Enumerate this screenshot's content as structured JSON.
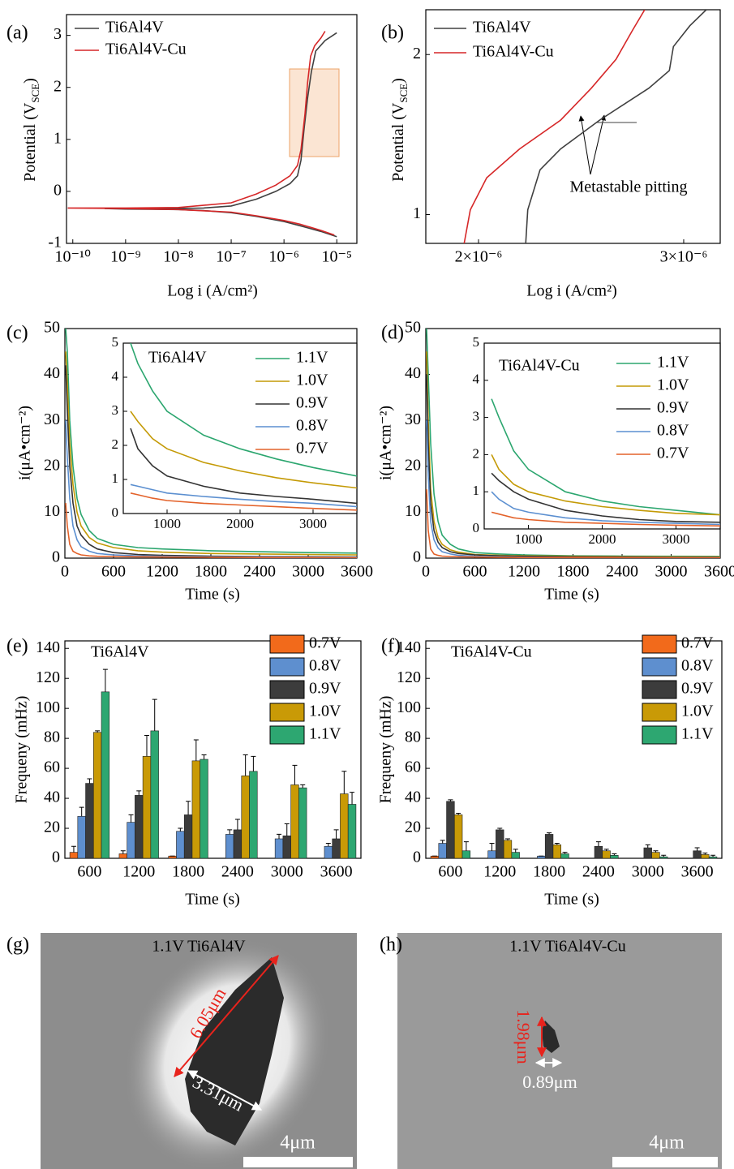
{
  "chart_data": [
    {
      "type": "line",
      "panel_label": "(a)",
      "xscale": "log",
      "xlabel": "Log i (A/cm²)",
      "ylabel": [
        "Potential (V",
        "SCE",
        ")"
      ],
      "xlim": [
        7.6e-11,
        2.4e-05
      ],
      "ylim": [
        -1,
        3.4
      ],
      "xticks": [
        {
          "value": 1e-10,
          "label": "10⁻¹⁰"
        },
        {
          "value": 1e-09,
          "label": "10⁻⁹"
        },
        {
          "value": 1e-08,
          "label": "10⁻⁸"
        },
        {
          "value": 1e-07,
          "label": "10⁻⁷"
        },
        {
          "value": 1e-06,
          "label": "10⁻⁶"
        },
        {
          "value": 1e-05,
          "label": "10⁻⁵"
        }
      ],
      "yticks": [
        -1,
        0,
        1,
        2,
        3
      ],
      "series": [
        {
          "name": "Ti6Al4V",
          "color": "#404040",
          "x": [
            1e-05,
            5e-06,
            2e-06,
            1e-06,
            3e-07,
            1e-07,
            3e-08,
            1e-08,
            1e-09,
            4e-10,
            1e-09,
            1e-08,
            3e-08,
            1e-07,
            3e-07,
            7e-07,
            1.3e-06,
            1.8e-06,
            2.1e-06,
            2.4e-06,
            2.8e-06,
            3.3e-06,
            4e-06,
            6e-06,
            1e-05
          ],
          "values": [
            -0.87,
            -0.77,
            -0.66,
            -0.58,
            -0.48,
            -0.41,
            -0.37,
            -0.35,
            -0.34,
            -0.33,
            -0.33,
            -0.33,
            -0.32,
            -0.28,
            -0.15,
            0.0,
            0.15,
            0.3,
            0.6,
            1.2,
            1.8,
            2.3,
            2.7,
            2.9,
            3.05
          ]
        },
        {
          "name": "Ti6Al4V-Cu",
          "color": "#d62728",
          "x": [
            9e-06,
            5e-06,
            2e-06,
            1e-06,
            3e-07,
            1e-07,
            1e-08,
            1e-09,
            8e-11,
            1e-09,
            1e-08,
            1e-07,
            3e-07,
            7e-07,
            1.3e-06,
            1.8e-06,
            2.1e-06,
            2.5e-06,
            2.8e-06,
            3.2e-06,
            3.8e-06,
            5e-06,
            6e-06
          ],
          "values": [
            -0.84,
            -0.75,
            -0.63,
            -0.56,
            -0.47,
            -0.4,
            -0.35,
            -0.33,
            -0.32,
            -0.32,
            -0.31,
            -0.22,
            -0.05,
            0.12,
            0.3,
            0.5,
            0.8,
            1.5,
            2.1,
            2.6,
            2.8,
            2.95,
            3.08
          ]
        }
      ]
    },
    {
      "type": "line",
      "panel_label": "(b)",
      "xlabel": "Log i (A/cm²)",
      "ylabel": [
        "Potential (V",
        "SCE",
        ")"
      ],
      "annotation": "Metastable pitting",
      "xlim": [
        1.743e-06,
        3.178e-06
      ],
      "ylim": [
        0.82,
        2.28
      ],
      "xticks": [
        {
          "value": 2e-06,
          "label": "2×10⁻⁶"
        },
        {
          "value": 3e-06,
          "label": "3×10⁻⁶"
        }
      ],
      "yticks": [
        1,
        2
      ],
      "series": [
        {
          "name": "Ti6Al4V",
          "color": "#404040",
          "x": [
            2.23e-06,
            2.24e-06,
            2.3e-06,
            2.4e-06,
            2.59e-06,
            2.71e-06,
            2.83e-06,
            2.93e-06,
            2.95e-06,
            3.03e-06,
            3.11e-06
          ],
          "values": [
            0.82,
            1.03,
            1.28,
            1.41,
            1.59,
            1.69,
            1.79,
            1.9,
            2.05,
            2.18,
            2.28
          ]
        },
        {
          "name": "Ti6Al4V-Cu",
          "color": "#d62728",
          "x": [
            1.93e-06,
            1.96e-06,
            2.04e-06,
            2.2e-06,
            2.4e-06,
            2.55e-06,
            2.67e-06,
            2.75e-06,
            2.81e-06
          ],
          "values": [
            0.82,
            1.03,
            1.23,
            1.41,
            1.59,
            1.79,
            1.97,
            2.15,
            2.28
          ]
        }
      ]
    },
    {
      "type": "line",
      "panel_label": "(c)",
      "xlabel": "Time (s)",
      "ylabel": "i(μA•cm⁻²)",
      "xlim": [
        0,
        3600
      ],
      "ylim": [
        0,
        50
      ],
      "xticks": [
        0,
        600,
        1200,
        1800,
        2400,
        3000,
        3600
      ],
      "yticks": [
        0,
        10,
        20,
        30,
        40,
        50
      ],
      "x": [
        10,
        30,
        60,
        100,
        150,
        200,
        300,
        400,
        600,
        900,
        1200,
        1800,
        2400,
        3000,
        3600
      ],
      "series": [
        {
          "name": "1.1V",
          "color": "#2ca66f",
          "values": [
            50,
            45,
            30,
            20,
            13,
            9.5,
            6,
            4.3,
            3,
            2.3,
            2,
            1.6,
            1.4,
            1.2,
            1.1
          ]
        },
        {
          "name": "1.0V",
          "color": "#c49a06",
          "values": [
            45,
            38,
            25,
            16,
            10,
            7,
            4.5,
            3.3,
            2.3,
            1.6,
            1.3,
            1.0,
            0.9,
            0.8,
            0.7
          ]
        },
        {
          "name": "0.9V",
          "color": "#333333",
          "values": [
            42,
            32,
            20,
            12,
            7,
            5,
            3,
            2,
            1.2,
            0.8,
            0.6,
            0.45,
            0.35,
            0.3,
            0.25
          ]
        },
        {
          "name": "0.8V",
          "color": "#5b8fd0",
          "values": [
            30,
            22,
            13,
            7,
            4,
            2.5,
            1.5,
            1,
            0.7,
            0.5,
            0.4,
            0.3,
            0.25,
            0.2,
            0.2
          ]
        },
        {
          "name": "0.7V",
          "color": "#e3622a",
          "values": [
            12,
            7,
            3,
            1.5,
            1,
            0.7,
            0.5,
            0.4,
            0.35,
            0.3,
            0.25,
            0.2,
            0.15,
            0.12,
            0.1
          ]
        }
      ],
      "inset": {
        "text": "Ti6Al4V",
        "xlim": [
          400,
          3600
        ],
        "ylim": [
          0,
          5
        ],
        "xticks": [
          1000,
          2000,
          3000
        ],
        "yticks": [
          0,
          1,
          2,
          3,
          4,
          5
        ],
        "x": [
          500,
          600,
          800,
          1000,
          1500,
          2000,
          2500,
          3000,
          3600
        ],
        "series": [
          {
            "values": [
              5,
              4.4,
              3.6,
              3,
              2.3,
              1.9,
              1.6,
              1.35,
              1.1
            ]
          },
          {
            "values": [
              3,
              2.7,
              2.2,
              1.9,
              1.5,
              1.25,
              1.05,
              0.9,
              0.75
            ]
          },
          {
            "values": [
              2.5,
              1.9,
              1.4,
              1.1,
              0.8,
              0.6,
              0.5,
              0.42,
              0.3
            ]
          },
          {
            "values": [
              0.85,
              0.8,
              0.7,
              0.6,
              0.5,
              0.42,
              0.35,
              0.3,
              0.2
            ]
          },
          {
            "values": [
              0.6,
              0.55,
              0.45,
              0.38,
              0.3,
              0.25,
              0.2,
              0.15,
              0.1
            ]
          }
        ]
      }
    },
    {
      "type": "line",
      "panel_label": "(d)",
      "xlabel": "Time (s)",
      "ylabel": "i(μA•cm⁻²)",
      "xlim": [
        0,
        3600
      ],
      "ylim": [
        0,
        50
      ],
      "xticks": [
        0,
        600,
        1200,
        1800,
        2400,
        3000,
        3600
      ],
      "yticks": [
        0,
        10,
        20,
        30,
        40,
        50
      ],
      "x": [
        10,
        30,
        60,
        100,
        150,
        200,
        300,
        400,
        600,
        900,
        1200,
        1800,
        2400,
        3000,
        3600
      ],
      "series": [
        {
          "name": "1.1V",
          "color": "#2ca66f",
          "values": [
            50,
            40,
            25,
            14,
            8,
            5,
            3,
            2,
            1.2,
            0.9,
            0.7,
            0.5,
            0.45,
            0.4,
            0.38
          ]
        },
        {
          "name": "1.0V",
          "color": "#c49a06",
          "values": [
            45,
            30,
            15,
            8,
            4.5,
            3,
            1.8,
            1.3,
            0.8,
            0.6,
            0.5,
            0.4,
            0.35,
            0.3,
            0.3
          ]
        },
        {
          "name": "0.9V",
          "color": "#333333",
          "values": [
            40,
            25,
            12,
            6,
            3.5,
            2.3,
            1.4,
            1,
            0.7,
            0.5,
            0.4,
            0.3,
            0.25,
            0.2,
            0.2
          ]
        },
        {
          "name": "0.8V",
          "color": "#5b8fd0",
          "values": [
            30,
            18,
            8,
            4,
            2.2,
            1.4,
            0.9,
            0.6,
            0.4,
            0.3,
            0.2,
            0.15,
            0.12,
            0.1,
            0.1
          ]
        },
        {
          "name": "0.7V",
          "color": "#e3622a",
          "values": [
            15,
            6,
            2,
            0.9,
            0.6,
            0.45,
            0.35,
            0.3,
            0.25,
            0.2,
            0.15,
            0.12,
            0.1,
            0.08,
            0.05
          ]
        }
      ],
      "inset": {
        "text": "Ti6Al4V-Cu",
        "xlim": [
          400,
          3600
        ],
        "ylim": [
          0,
          5
        ],
        "xticks": [
          1000,
          2000,
          3000
        ],
        "yticks": [
          0,
          1,
          2,
          3,
          4,
          5
        ],
        "x": [
          500,
          600,
          800,
          1000,
          1500,
          2000,
          2500,
          3000,
          3600
        ],
        "series": [
          {
            "values": [
              3.5,
              3,
              2.1,
              1.6,
              1,
              0.75,
              0.6,
              0.5,
              0.38
            ]
          },
          {
            "values": [
              2,
              1.6,
              1.2,
              1,
              0.75,
              0.6,
              0.5,
              0.42,
              0.38
            ]
          },
          {
            "values": [
              1.5,
              1.3,
              1,
              0.8,
              0.5,
              0.35,
              0.25,
              0.2,
              0.18
            ]
          },
          {
            "values": [
              1.0,
              0.8,
              0.55,
              0.45,
              0.3,
              0.22,
              0.18,
              0.15,
              0.12
            ]
          },
          {
            "values": [
              0.45,
              0.4,
              0.3,
              0.25,
              0.18,
              0.15,
              0.12,
              0.1,
              0.08
            ]
          }
        ]
      }
    },
    {
      "type": "bar",
      "panel_label": "(e)",
      "text": "Ti6Al4V",
      "xlabel": "Time (s)",
      "ylabel": "Frequeny (mHz)",
      "categories": [
        "600",
        "1200",
        "1800",
        "2400",
        "3000",
        "3600"
      ],
      "ylim": [
        0,
        145
      ],
      "yticks": [
        0,
        20,
        40,
        60,
        80,
        100,
        120,
        140
      ],
      "series": [
        {
          "name": "0.7V",
          "color": "#f26a1b",
          "values": [
            4,
            3,
            1.5,
            null,
            null,
            null
          ],
          "errors": [
            4,
            2,
            0,
            null,
            null,
            null
          ]
        },
        {
          "name": "0.8V",
          "color": "#5e8fcf",
          "values": [
            28,
            24,
            18,
            16,
            13,
            8
          ],
          "errors": [
            6,
            5,
            2,
            3,
            3,
            2
          ]
        },
        {
          "name": "0.9V",
          "color": "#3c3c3c",
          "values": [
            50,
            42,
            29,
            19,
            15,
            13
          ],
          "errors": [
            3,
            3,
            9,
            7,
            8,
            6
          ]
        },
        {
          "name": "1.0V",
          "color": "#c99a06",
          "values": [
            84,
            68,
            65,
            55,
            49,
            43
          ],
          "errors": [
            1,
            14,
            14,
            14,
            13,
            15
          ]
        },
        {
          "name": "1.1V",
          "color": "#2da771",
          "values": [
            111,
            85,
            66,
            58,
            47,
            36
          ],
          "errors": [
            15,
            21,
            3,
            10,
            2,
            8
          ]
        }
      ]
    },
    {
      "type": "bar",
      "panel_label": "(f)",
      "text": "Ti6Al4V-Cu",
      "xlabel": "Time (s)",
      "ylabel": "Frequeny (mHz)",
      "categories": [
        "600",
        "1200",
        "1800",
        "2400",
        "3000",
        "3600"
      ],
      "ylim": [
        0,
        145
      ],
      "yticks": [
        0,
        20,
        40,
        60,
        80,
        100,
        120,
        140
      ],
      "series": [
        {
          "name": "0.7V",
          "color": "#f26a1b",
          "values": [
            1.5,
            null,
            null,
            null,
            null,
            null
          ],
          "errors": [
            0,
            null,
            null,
            null,
            null,
            null
          ]
        },
        {
          "name": "0.8V",
          "color": "#5e8fcf",
          "values": [
            10,
            5,
            1.5,
            null,
            null,
            null
          ],
          "errors": [
            2,
            5,
            0,
            null,
            null,
            null
          ]
        },
        {
          "name": "0.9V",
          "color": "#3c3c3c",
          "values": [
            38,
            19,
            16,
            8,
            7,
            5
          ],
          "errors": [
            1,
            1,
            1,
            3,
            2,
            2
          ]
        },
        {
          "name": "1.0V",
          "color": "#c99a06",
          "values": [
            29,
            12,
            9,
            5,
            4,
            2.5
          ],
          "errors": [
            1,
            1,
            1,
            1,
            1,
            1
          ]
        },
        {
          "name": "1.1V",
          "color": "#2da771",
          "values": [
            5,
            4,
            3,
            2,
            1,
            1
          ],
          "errors": [
            6,
            2,
            1,
            1,
            1,
            1
          ]
        }
      ]
    }
  ],
  "images": [
    {
      "label": "(g)",
      "caption": "1.1V Ti6Al4V",
      "measurements": [
        "6.05μm",
        "3.31μm"
      ],
      "scale_bar": "4μm"
    },
    {
      "label": "(h)",
      "caption": "1.1V Ti6Al4V-Cu",
      "measurements": [
        "1.98μm",
        "0.89μm"
      ],
      "scale_bar": "4μm"
    }
  ]
}
